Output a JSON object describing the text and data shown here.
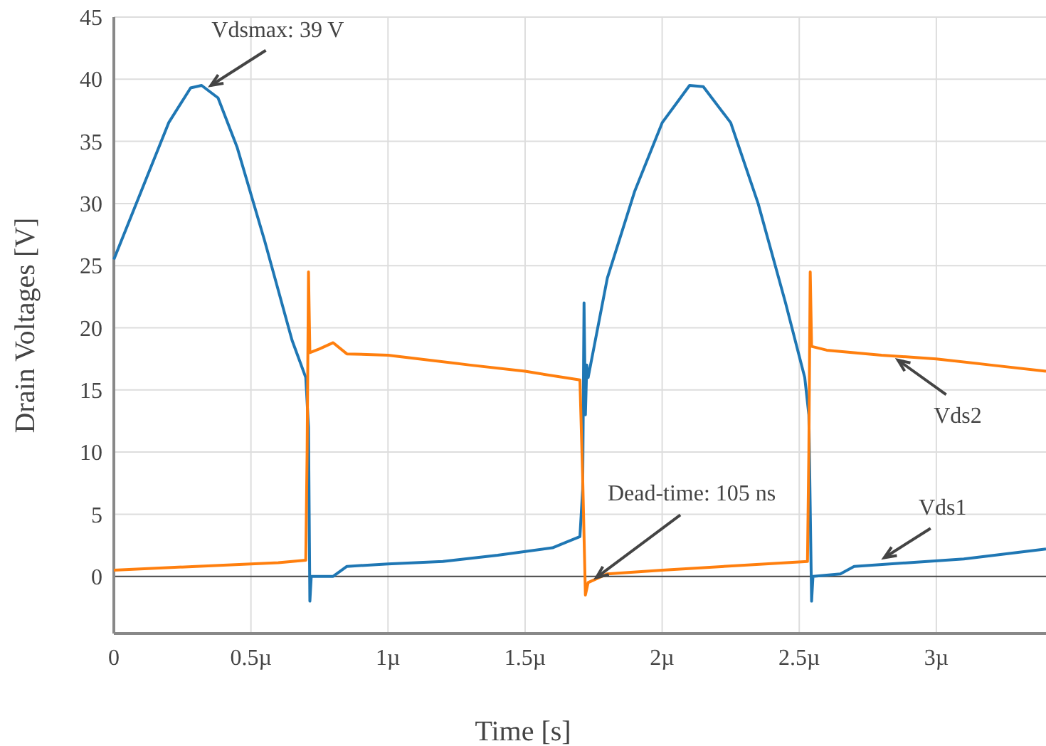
{
  "chart_data": {
    "type": "line",
    "xlabel": "Time [s]",
    "ylabel": "Drain Voltages [V]",
    "xlim": [
      0,
      3.4
    ],
    "xticks": [
      0,
      {
        "value": 0.5,
        "label": "0.5µ"
      },
      {
        "value": 1,
        "label": "1µ"
      },
      {
        "value": 1.5,
        "label": "1.5µ"
      },
      {
        "value": 2,
        "label": "2µ"
      },
      {
        "value": 2.5,
        "label": "2.5µ"
      },
      {
        "value": 3,
        "label": "3µ"
      }
    ],
    "ylim": [
      -4.6,
      45
    ],
    "yticks": [
      0,
      5,
      10,
      15,
      20,
      25,
      30,
      35,
      40,
      45
    ],
    "grid": true,
    "series": [
      {
        "color": "#1f77b4",
        "x": [
          0,
          0.1,
          0.2,
          0.28,
          0.32,
          0.38,
          0.45,
          0.55,
          0.65,
          0.7,
          0.71,
          0.715,
          0.72,
          0.8,
          0.85,
          1,
          1.2,
          1.4,
          1.6,
          1.7,
          1.71,
          1.715,
          1.72,
          1.725,
          1.73,
          1.8,
          1.9,
          2,
          2.1,
          2.15,
          2.25,
          2.35,
          2.45,
          2.52,
          2.535,
          2.545,
          2.55,
          2.65,
          2.7,
          2.9,
          3.1,
          3.4
        ],
        "values": [
          25.5,
          31,
          36.5,
          39.3,
          39.5,
          38.5,
          34.5,
          27,
          19,
          16,
          12,
          -2,
          0,
          0,
          0.8,
          1,
          1.2,
          1.7,
          2.3,
          3.2,
          7,
          22,
          13,
          17,
          16,
          24,
          31,
          36.5,
          39.5,
          39.4,
          36.5,
          30,
          22,
          16,
          13,
          -2,
          0,
          0.2,
          0.8,
          1.1,
          1.4,
          2.2
        ]
      },
      {
        "color": "#ff7f0e",
        "x": [
          0,
          0.3,
          0.6,
          0.7,
          0.705,
          0.71,
          0.715,
          0.75,
          0.8,
          0.85,
          1,
          1.3,
          1.5,
          1.7,
          1.71,
          1.72,
          1.73,
          1.8,
          2,
          2.3,
          2.53,
          2.535,
          2.54,
          2.545,
          2.6,
          2.8,
          3,
          3.2,
          3.4
        ],
        "values": [
          0.5,
          0.8,
          1.1,
          1.3,
          10,
          24.5,
          18,
          18.3,
          18.8,
          17.9,
          17.8,
          17,
          16.5,
          15.8,
          8,
          -1.5,
          -0.5,
          0.2,
          0.5,
          0.9,
          1.2,
          10,
          24.5,
          18.5,
          18.2,
          17.8,
          17.5,
          17,
          16.5
        ]
      }
    ],
    "annotations": [
      {
        "text": "Vdsmax: 39 V",
        "x": 0.354,
        "y": 39.5
      },
      {
        "text": "Vds2",
        "x": 2.86,
        "y": 17.4
      },
      {
        "text": "Dead-time: 105 ns",
        "x": 1.76,
        "y": -0.1
      },
      {
        "text": "Vds1",
        "x": 2.81,
        "y": 1.5
      }
    ]
  }
}
